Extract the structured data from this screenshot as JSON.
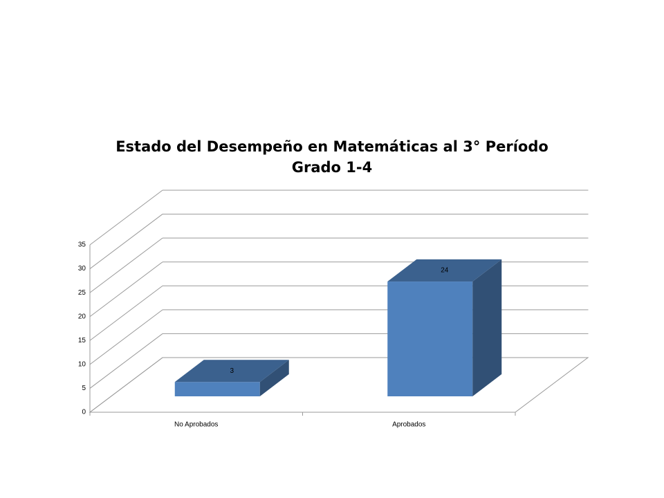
{
  "chart_data": {
    "type": "bar3d",
    "title": "Estado del Desempeño en Matemáticas al 3° Período",
    "subtitle": "Grado 1-4",
    "categories": [
      "No Aprobados",
      "Aprobados"
    ],
    "values": [
      3,
      24
    ],
    "color": "#4f81bd",
    "ylim": [
      0,
      35
    ],
    "yticks": [
      0,
      5,
      10,
      15,
      20,
      25,
      30,
      35
    ],
    "grid": true
  }
}
